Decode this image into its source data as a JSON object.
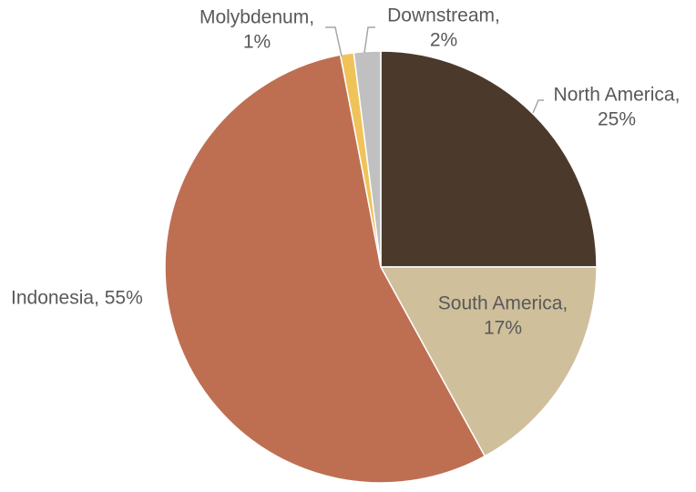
{
  "chart_data": {
    "type": "pie",
    "values": [
      25,
      17,
      55,
      1,
      2
    ],
    "value_labels": [
      [
        "North America,",
        "25%"
      ],
      [
        "South America,",
        "17%"
      ],
      [
        "Indonesia, 55%"
      ],
      [
        "Molybdenum,",
        "1%"
      ],
      [
        "Downstream,",
        "2%"
      ]
    ],
    "colors": [
      "#4b3a2c",
      "#cfbf9b",
      "#be6f52",
      "#f0c35a",
      "#c0c0c0"
    ],
    "start_angle": 0,
    "direction": "clockwise"
  }
}
